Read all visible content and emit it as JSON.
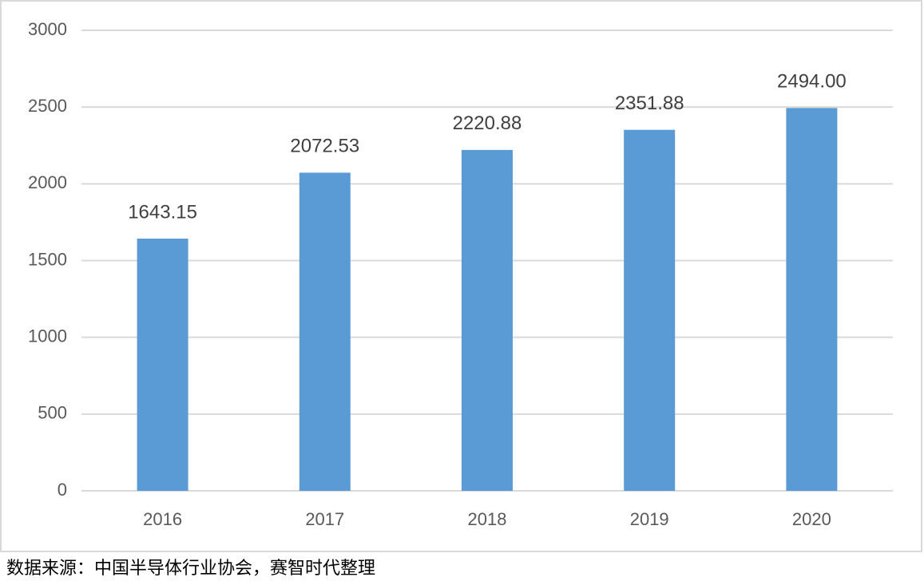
{
  "chart_data": {
    "type": "bar",
    "categories": [
      "2016",
      "2017",
      "2018",
      "2019",
      "2020"
    ],
    "values": [
      1643.15,
      2072.53,
      2220.88,
      2351.88,
      2494
    ],
    "value_labels": [
      "1643.15",
      "2072.53",
      "2220.88",
      "2351.88",
      "2494.00"
    ],
    "color": "#5b9bd5",
    "ylim": [
      0,
      3000
    ],
    "yticks": [
      0,
      500,
      1000,
      1500,
      2000,
      2500,
      3000
    ],
    "grid": true,
    "source": "数据来源：中国半导体行业协会，赛智时代整理"
  }
}
